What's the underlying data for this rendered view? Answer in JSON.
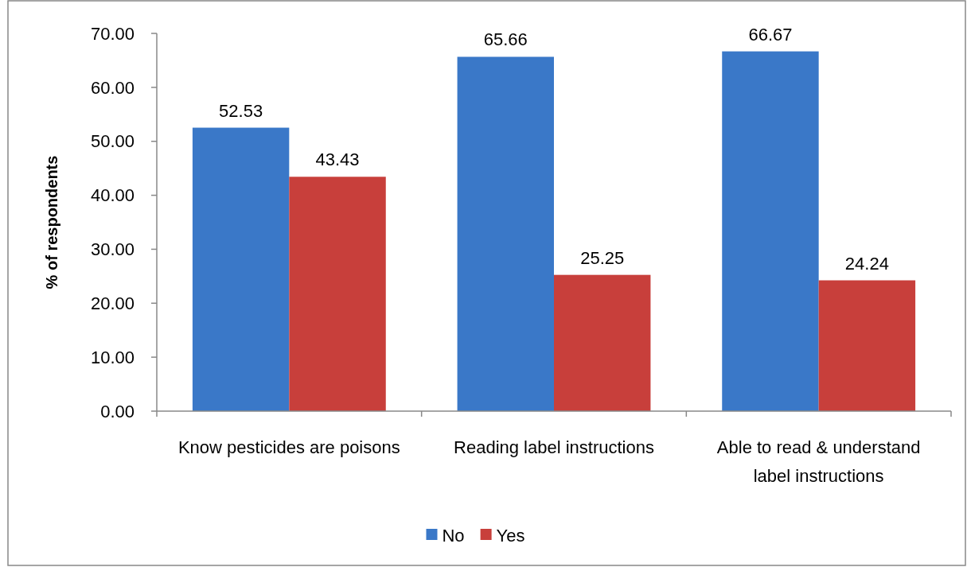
{
  "chart_data": {
    "type": "bar",
    "ylabel": "% of respondents",
    "categories": [
      "Know pesticides are poisons",
      "Reading label instructions",
      "Able to read & understand label instructions"
    ],
    "series": [
      {
        "name": "No",
        "color": "#3a78c8",
        "values": [
          52.53,
          65.66,
          66.67
        ]
      },
      {
        "name": "Yes",
        "color": "#c83f3b",
        "values": [
          43.43,
          25.25,
          24.24
        ]
      }
    ],
    "ylim": [
      0,
      70
    ],
    "yticks": [
      {
        "value": 0,
        "label": "0.00"
      },
      {
        "value": 10,
        "label": "10.00"
      },
      {
        "value": 20,
        "label": "20.00"
      },
      {
        "value": 30,
        "label": "30.00"
      },
      {
        "value": 40,
        "label": "40.00"
      },
      {
        "value": 50,
        "label": "50.00"
      },
      {
        "value": 60,
        "label": "60.00"
      },
      {
        "value": 70,
        "label": "70.00"
      }
    ],
    "data_labels": true,
    "legend": "bottom",
    "grid": false
  }
}
